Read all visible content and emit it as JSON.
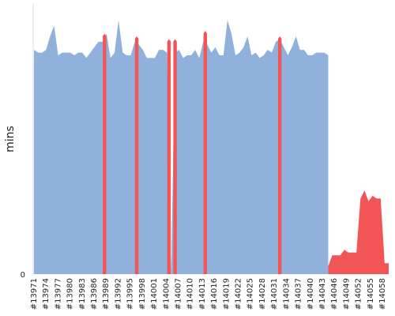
{
  "chart_data": {
    "type": "area",
    "ylabel": "mins",
    "y_ticks": [
      "0"
    ],
    "ylim": [
      0,
      100
    ],
    "x_tick_labels": [
      "#13971",
      "#13974",
      "#13977",
      "#13980",
      "#13983",
      "#13986",
      "#13989",
      "#13992",
      "#13995",
      "#13998",
      "#14001",
      "#14004",
      "#14007",
      "#14010",
      "#14013",
      "#14016",
      "#14019",
      "#14022",
      "#14025",
      "#14028",
      "#14031",
      "#14034",
      "#14037",
      "#14040",
      "#14043",
      "#14046",
      "#14049",
      "#14052",
      "#14055",
      "#14058"
    ],
    "x_start": 13971,
    "x_end": 14059,
    "series": [
      {
        "color": "#8fb1db",
        "points": [
          [
            13971,
            83
          ],
          [
            13972,
            82
          ],
          [
            13973,
            82
          ],
          [
            13974,
            83
          ],
          [
            13975,
            88
          ],
          [
            13976,
            92
          ],
          [
            13977,
            81
          ],
          [
            13978,
            82
          ],
          [
            13979,
            82
          ],
          [
            13980,
            82
          ],
          [
            13981,
            81
          ],
          [
            13982,
            82
          ],
          [
            13983,
            82
          ],
          [
            13984,
            80
          ],
          [
            13985,
            82
          ],
          [
            13986,
            84
          ],
          [
            13987,
            86
          ],
          [
            13988,
            86
          ],
          [
            13989,
            89
          ],
          [
            13990,
            80
          ],
          [
            13991,
            82
          ],
          [
            13992,
            94
          ],
          [
            13993,
            82
          ],
          [
            13994,
            81
          ],
          [
            13995,
            81
          ],
          [
            13996,
            86
          ],
          [
            13997,
            85
          ],
          [
            13998,
            83
          ],
          [
            13999,
            80
          ],
          [
            14000,
            80
          ],
          [
            14001,
            80
          ],
          [
            14002,
            83
          ],
          [
            14003,
            83
          ],
          [
            14004,
            82
          ],
          [
            14005,
            0
          ],
          [
            14006,
            82
          ],
          [
            14007,
            83
          ],
          [
            14008,
            80
          ],
          [
            14009,
            81
          ],
          [
            14010,
            81
          ],
          [
            14011,
            83
          ],
          [
            14012,
            80
          ],
          [
            14013,
            86
          ],
          [
            14014,
            85
          ],
          [
            14015,
            82
          ],
          [
            14016,
            84
          ],
          [
            14017,
            81
          ],
          [
            14018,
            81
          ],
          [
            14019,
            94
          ],
          [
            14020,
            89
          ],
          [
            14021,
            81
          ],
          [
            14022,
            82
          ],
          [
            14023,
            84
          ],
          [
            14024,
            88
          ],
          [
            14025,
            81
          ],
          [
            14026,
            82
          ],
          [
            14027,
            80
          ],
          [
            14028,
            81
          ],
          [
            14029,
            83
          ],
          [
            14030,
            82
          ],
          [
            14031,
            86
          ],
          [
            14032,
            87
          ],
          [
            14033,
            84
          ],
          [
            14034,
            81
          ],
          [
            14035,
            84
          ],
          [
            14036,
            88
          ],
          [
            14037,
            83
          ],
          [
            14038,
            83
          ],
          [
            14039,
            81
          ],
          [
            14040,
            81
          ],
          [
            14041,
            82
          ],
          [
            14042,
            82
          ],
          [
            14043,
            82
          ],
          [
            14044,
            81
          ]
        ]
      },
      {
        "color": "#f25555",
        "points": [
          [
            14044,
            3
          ],
          [
            14045,
            7
          ],
          [
            14046,
            7
          ],
          [
            14047,
            7
          ],
          [
            14048,
            9
          ],
          [
            14049,
            8
          ],
          [
            14050,
            8
          ],
          [
            14051,
            8
          ],
          [
            14052,
            28
          ],
          [
            14053,
            31
          ],
          [
            14054,
            27
          ],
          [
            14055,
            29
          ],
          [
            14056,
            28
          ],
          [
            14057,
            28
          ],
          [
            14058,
            4
          ],
          [
            14059,
            4
          ]
        ]
      }
    ],
    "red_spikes": [
      {
        "x": 13988.5,
        "value": 89
      },
      {
        "x": 13996.5,
        "value": 88
      },
      {
        "x": 14004.5,
        "value": 87
      },
      {
        "x": 14006,
        "value": 87
      },
      {
        "x": 14013.5,
        "value": 90
      },
      {
        "x": 14032,
        "value": 88
      }
    ]
  }
}
